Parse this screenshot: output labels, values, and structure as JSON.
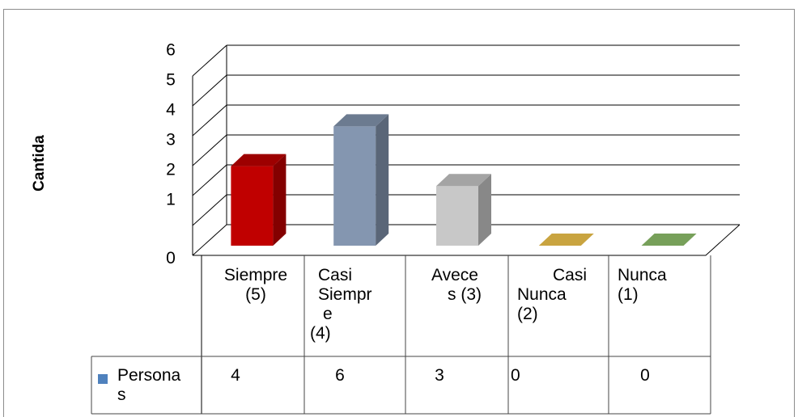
{
  "chart_data": {
    "type": "bar",
    "title": "",
    "ylabel": "Cantida",
    "xlabel": "",
    "ylim": [
      0,
      6
    ],
    "y_ticks": [
      "0",
      "1",
      "2",
      "3",
      "4",
      "5",
      "6"
    ],
    "categories": [
      "Siempre (5)",
      "Casi Siempre (4)",
      "Avece s (3)",
      "Casi Nunca (2)",
      "Nunca (1)"
    ],
    "category_label_lines": [
      [
        "Siempre",
        "(5)"
      ],
      [
        "Casi",
        "Siempr",
        "e",
        "(4)"
      ],
      [
        "Avece",
        "s (3)"
      ],
      [
        "Casi",
        "Nunca",
        "(2)"
      ],
      [
        "Nunca",
        "(1)"
      ]
    ],
    "series": [
      {
        "name": "Personas",
        "name_lines": [
          "Persona",
          "s"
        ],
        "values": [
          4,
          6,
          3,
          0,
          0
        ]
      }
    ],
    "table_values": [
      "4",
      "6",
      "3",
      "0",
      "0"
    ],
    "bar_colors": [
      "#c00000",
      "#8496b0",
      "#c8c8c8",
      "#c9a440",
      "#77a05a"
    ],
    "legend_marker_color": "#4f81bd",
    "grid": true,
    "style": "3d-column with data table"
  }
}
